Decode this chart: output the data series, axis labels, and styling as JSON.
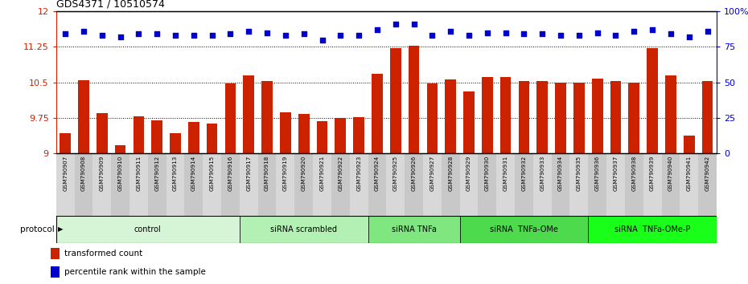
{
  "title": "GDS4371 / 10510574",
  "samples": [
    "GSM790907",
    "GSM790908",
    "GSM790909",
    "GSM790910",
    "GSM790911",
    "GSM790912",
    "GSM790913",
    "GSM790914",
    "GSM790915",
    "GSM790916",
    "GSM790917",
    "GSM790918",
    "GSM790919",
    "GSM790920",
    "GSM790921",
    "GSM790922",
    "GSM790923",
    "GSM790924",
    "GSM790925",
    "GSM790926",
    "GSM790927",
    "GSM790928",
    "GSM790929",
    "GSM790930",
    "GSM790931",
    "GSM790932",
    "GSM790933",
    "GSM790934",
    "GSM790935",
    "GSM790936",
    "GSM790937",
    "GSM790938",
    "GSM790939",
    "GSM790940",
    "GSM790941",
    "GSM790942"
  ],
  "bar_values": [
    9.42,
    10.55,
    9.85,
    9.17,
    9.78,
    9.7,
    9.42,
    9.67,
    9.63,
    10.47,
    10.65,
    10.53,
    9.87,
    9.84,
    9.68,
    9.75,
    9.77,
    10.68,
    11.22,
    11.27,
    10.47,
    10.57,
    10.3,
    10.62,
    10.62,
    10.53,
    10.52,
    10.5,
    10.5,
    10.58,
    10.52,
    10.5,
    11.22,
    10.65,
    9.38,
    10.52
  ],
  "dot_values": [
    84,
    86,
    83,
    82,
    84,
    84,
    83,
    83,
    83,
    84,
    86,
    85,
    83,
    84,
    80,
    83,
    83,
    87,
    91,
    91,
    83,
    86,
    83,
    85,
    85,
    84,
    84,
    83,
    83,
    85,
    83,
    86,
    87,
    84,
    82,
    86
  ],
  "ylim_left": [
    9.0,
    12.0
  ],
  "ylim_right": [
    0,
    100
  ],
  "yticks_left": [
    9.0,
    9.75,
    10.5,
    11.25,
    12.0
  ],
  "yticks_right": [
    0,
    25,
    50,
    75,
    100
  ],
  "bar_color": "#cc2200",
  "dot_color": "#0000cc",
  "groups": [
    {
      "label": "control",
      "start": 0,
      "end": 10,
      "color": "#d6f5d6"
    },
    {
      "label": "siRNA scrambled",
      "start": 10,
      "end": 17,
      "color": "#b3f0b3"
    },
    {
      "label": "siRNA TNFa",
      "start": 17,
      "end": 22,
      "color": "#80e680"
    },
    {
      "label": "siRNA  TNFa-OMe",
      "start": 22,
      "end": 29,
      "color": "#4ddb4d"
    },
    {
      "label": "siRNA  TNFa-OMe-P",
      "start": 29,
      "end": 36,
      "color": "#1aff1a"
    }
  ],
  "legend_bar_label": "transformed count",
  "legend_dot_label": "percentile rank within the sample",
  "protocol_label": "protocol",
  "bg_color": "#ffffff",
  "left_tick_labels": [
    "9",
    "9.75",
    "10.5",
    "11.25",
    "12"
  ],
  "right_tick_labels": [
    "0",
    "25",
    "50",
    "75",
    "100%"
  ]
}
